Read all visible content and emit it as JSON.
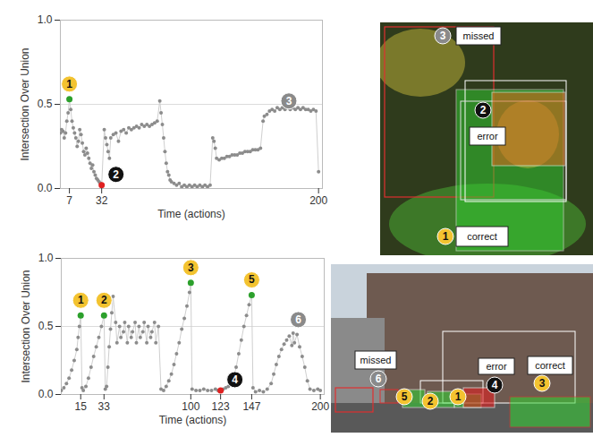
{
  "chart_data": [
    {
      "type": "line",
      "marker": "circle",
      "color": "#8c8c8c",
      "grid": true,
      "x_label": "Time (actions)",
      "y_label": "Intersection Over Union",
      "xlim": [
        0,
        203
      ],
      "ylim": [
        0,
        1
      ],
      "xticks": [
        7,
        32,
        200
      ],
      "yticks": [
        {
          "value": 0,
          "label": "0.0"
        },
        {
          "value": 0.5,
          "label": "0.5"
        },
        {
          "value": 1,
          "label": "1.0"
        }
      ],
      "x": [
        0,
        1,
        2,
        3,
        4,
        5,
        6,
        7,
        8,
        9,
        10,
        11,
        12,
        13,
        14,
        15,
        16,
        17,
        18,
        19,
        20,
        21,
        22,
        23,
        24,
        25,
        26,
        27,
        28,
        29,
        30,
        31,
        32,
        34,
        35,
        36,
        37,
        38,
        39,
        41,
        43,
        45,
        47,
        49,
        51,
        53,
        55,
        57,
        59,
        61,
        63,
        65,
        67,
        69,
        71,
        73,
        75,
        77,
        78,
        79,
        80,
        81,
        82,
        83,
        84,
        85,
        86,
        88,
        90,
        92,
        94,
        96,
        98,
        100,
        102,
        104,
        106,
        108,
        110,
        112,
        114,
        116,
        118,
        119,
        120,
        121,
        123,
        125,
        127,
        129,
        131,
        133,
        135,
        137,
        139,
        141,
        143,
        145,
        147,
        149,
        151,
        153,
        155,
        157,
        158,
        160,
        162,
        164,
        166,
        168,
        170,
        172,
        174,
        176,
        178,
        180,
        182,
        184,
        186,
        188,
        190,
        192,
        194,
        196,
        198,
        200
      ],
      "values": [
        0.33,
        0.35,
        0.34,
        0.3,
        0.33,
        0.4,
        0.45,
        0.53,
        0.47,
        0.4,
        0.36,
        0.33,
        0.3,
        0.25,
        0.28,
        0.35,
        0.32,
        0.27,
        0.22,
        0.2,
        0.24,
        0.21,
        0.18,
        0.15,
        0.12,
        0.14,
        0.1,
        0.08,
        0.06,
        0.05,
        0.04,
        0.03,
        0.02,
        0.35,
        0.3,
        0.26,
        0.22,
        0.18,
        0.3,
        0.32,
        0.33,
        0.28,
        0.34,
        0.35,
        0.33,
        0.36,
        0.35,
        0.36,
        0.37,
        0.36,
        0.38,
        0.37,
        0.38,
        0.37,
        0.38,
        0.39,
        0.4,
        0.52,
        0.45,
        0.38,
        0.3,
        0.22,
        0.15,
        0.1,
        0.08,
        0.05,
        0.04,
        0.03,
        0.02,
        0.03,
        0.01,
        0.02,
        0.01,
        0.02,
        0.01,
        0.02,
        0.01,
        0.02,
        0.01,
        0.02,
        0.01,
        0.02,
        0.3,
        0.28,
        0.24,
        0.18,
        0.17,
        0.18,
        0.18,
        0.19,
        0.19,
        0.2,
        0.2,
        0.2,
        0.21,
        0.21,
        0.22,
        0.22,
        0.22,
        0.23,
        0.23,
        0.23,
        0.24,
        0.4,
        0.43,
        0.44,
        0.46,
        0.47,
        0.46,
        0.48,
        0.47,
        0.48,
        0.47,
        0.48,
        0.47,
        0.48,
        0.47,
        0.48,
        0.47,
        0.48,
        0.47,
        0.47,
        0.46,
        0.47,
        0.46,
        0.1
      ],
      "annotations": [
        {
          "text": "1",
          "x": 7,
          "y": 0.53,
          "color": "#2ca02c"
        },
        {
          "text": "2",
          "x": 32,
          "y": 0.02,
          "color": "#e02020"
        },
        {
          "text": "3",
          "x": 177,
          "y": 0.52
        }
      ]
    },
    {
      "type": "line",
      "marker": "circle",
      "color": "#8c8c8c",
      "grid": true,
      "x_label": "Time (actions)",
      "y_label": "Intersection Over Union",
      "xlim": [
        0,
        203
      ],
      "ylim": [
        0,
        1
      ],
      "xticks": [
        15,
        33,
        100,
        123,
        147,
        200
      ],
      "yticks": [
        {
          "value": 0,
          "label": "0.0"
        },
        {
          "value": 0.5,
          "label": "0.5"
        },
        {
          "value": 1,
          "label": "1.0"
        }
      ],
      "x": [
        0,
        2,
        4,
        6,
        8,
        10,
        12,
        13,
        14,
        15,
        16,
        17,
        19,
        21,
        23,
        25,
        27,
        29,
        31,
        33,
        34,
        35,
        36,
        37,
        38,
        39,
        40,
        42,
        43,
        45,
        46,
        48,
        49,
        51,
        52,
        54,
        55,
        57,
        58,
        60,
        61,
        63,
        64,
        66,
        67,
        69,
        70,
        72,
        73,
        75,
        77,
        79,
        81,
        83,
        85,
        87,
        89,
        91,
        93,
        95,
        97,
        99,
        100,
        101,
        104,
        107,
        110,
        113,
        116,
        119,
        121,
        123,
        125,
        127,
        129,
        131,
        133,
        135,
        137,
        139,
        141,
        143,
        145,
        147,
        148,
        150,
        153,
        156,
        159,
        162,
        164,
        166,
        168,
        170,
        172,
        174,
        176,
        178,
        179,
        180,
        182,
        184,
        186,
        188,
        190,
        192,
        195,
        198,
        200
      ],
      "values": [
        0.03,
        0.05,
        0.08,
        0.12,
        0.18,
        0.25,
        0.33,
        0.42,
        0.5,
        0.58,
        0.05,
        0.03,
        0.06,
        0.12,
        0.2,
        0.28,
        0.35,
        0.42,
        0.5,
        0.58,
        0.04,
        0.06,
        0.2,
        0.35,
        0.48,
        0.6,
        0.72,
        0.53,
        0.38,
        0.5,
        0.42,
        0.46,
        0.53,
        0.38,
        0.5,
        0.42,
        0.46,
        0.53,
        0.38,
        0.5,
        0.42,
        0.46,
        0.53,
        0.38,
        0.5,
        0.42,
        0.46,
        0.53,
        0.38,
        0.5,
        0.04,
        0.03,
        0.06,
        0.1,
        0.15,
        0.22,
        0.3,
        0.38,
        0.48,
        0.56,
        0.65,
        0.75,
        0.82,
        0.04,
        0.03,
        0.03,
        0.04,
        0.03,
        0.03,
        0.04,
        0.03,
        0.03,
        0.04,
        0.05,
        0.06,
        0.08,
        0.12,
        0.2,
        0.3,
        0.4,
        0.5,
        0.58,
        0.66,
        0.73,
        0.05,
        0.02,
        0.03,
        0.02,
        0.04,
        0.08,
        0.15,
        0.22,
        0.28,
        0.33,
        0.37,
        0.4,
        0.43,
        0.36,
        0.45,
        0.38,
        0.44,
        0.35,
        0.28,
        0.2,
        0.1,
        0.04,
        0.03,
        0.04,
        0.03
      ],
      "annotations": [
        {
          "text": "1",
          "x": 15,
          "y": 0.58,
          "color": "#2ca02c"
        },
        {
          "text": "2",
          "x": 33,
          "y": 0.58,
          "color": "#2ca02c"
        },
        {
          "text": "3",
          "x": 100,
          "y": 0.82,
          "color": "#2ca02c"
        },
        {
          "text": "4",
          "x": 123,
          "y": 0.03,
          "color": "#e02020"
        },
        {
          "text": "5",
          "x": 147,
          "y": 0.73,
          "color": "#2ca02c"
        },
        {
          "text": "6",
          "x": 183,
          "y": 0.55
        }
      ]
    }
  ],
  "images": [
    {
      "labels": [
        "missed",
        "error",
        "correct"
      ],
      "badges": [
        "3",
        "2",
        "1"
      ]
    },
    {
      "labels": [
        "missed",
        "error",
        "correct"
      ],
      "badges": [
        "6",
        "5",
        "2",
        "1",
        "4",
        "3"
      ]
    }
  ]
}
